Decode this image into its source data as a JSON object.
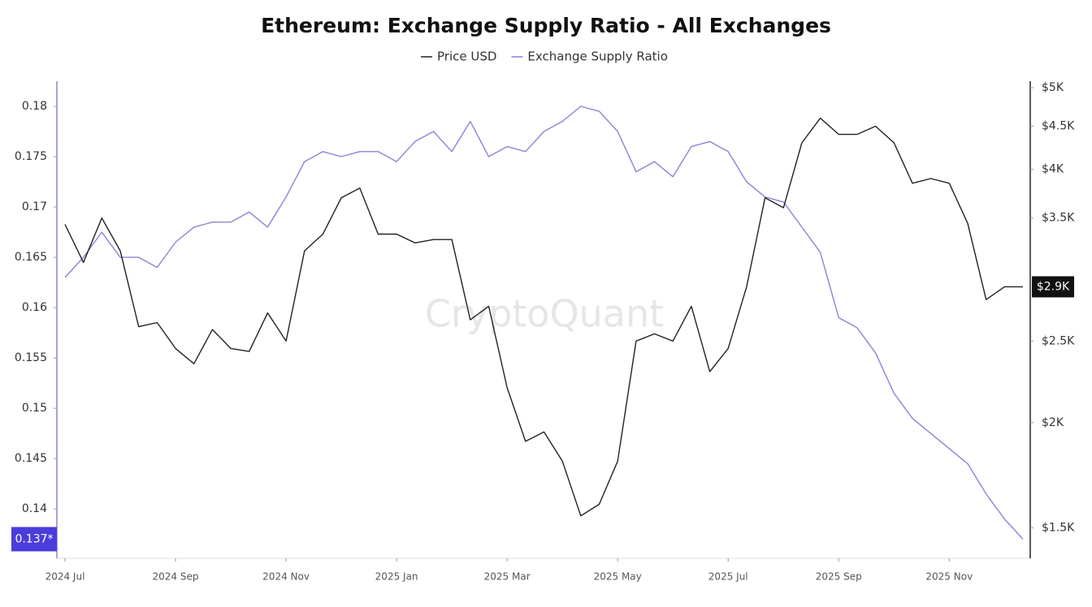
{
  "chart_data": {
    "type": "line",
    "title": "Ethereum: Exchange Supply Ratio - All Exchanges",
    "watermark": "CryptoQuant",
    "categories": [
      "2024 Jul",
      null,
      null,
      null,
      null,
      null,
      "2024 Sep",
      null,
      null,
      null,
      null,
      null,
      "2024 Nov",
      null,
      null,
      null,
      null,
      null,
      "2025 Jan",
      null,
      null,
      null,
      null,
      null,
      "2025 Mar",
      null,
      null,
      null,
      null,
      null,
      "2025 May",
      null,
      null,
      null,
      null,
      null,
      "2025 Jul",
      null,
      null,
      null,
      null,
      null,
      "2025 Sep",
      null,
      null,
      null,
      null,
      null,
      "2025 Nov",
      null,
      null,
      null,
      null
    ],
    "series": [
      {
        "name": "Price USD",
        "color": "#222222",
        "axis": "y2",
        "current_label": "$2.9K",
        "values": [
          3440,
          3100,
          3500,
          3200,
          2600,
          2630,
          2450,
          2350,
          2580,
          2450,
          2430,
          2700,
          2500,
          3200,
          3350,
          3700,
          3800,
          3350,
          3350,
          3270,
          3300,
          3300,
          2650,
          2750,
          2200,
          1900,
          1950,
          1800,
          1550,
          1600,
          1800,
          2500,
          2550,
          2500,
          2750,
          2300,
          2450,
          2900,
          3700,
          3600,
          4300,
          4600,
          4400,
          4400,
          4500,
          4300,
          3850,
          3900,
          3850,
          3450,
          2800,
          2900,
          2900
        ]
      },
      {
        "name": "Exchange Supply Ratio",
        "color": "#8a84d6",
        "current_label": "0.137*",
        "values": [
          0.163,
          0.165,
          0.1675,
          0.165,
          0.165,
          0.164,
          0.1665,
          0.168,
          0.1685,
          0.1685,
          0.1695,
          0.168,
          0.171,
          0.1745,
          0.1755,
          0.175,
          0.1755,
          0.1755,
          0.1745,
          0.1765,
          0.1775,
          0.1755,
          0.1785,
          0.175,
          0.176,
          0.1755,
          0.1775,
          0.1785,
          0.18,
          0.1795,
          0.1775,
          0.1735,
          0.1745,
          0.173,
          0.176,
          0.1765,
          0.1755,
          0.1725,
          0.171,
          0.1705,
          0.168,
          0.1655,
          0.159,
          0.158,
          0.1555,
          0.1515,
          0.149,
          0.1475,
          0.146,
          0.1445,
          0.1415,
          0.139,
          0.137
        ]
      }
    ],
    "ylim": [
      0.1351,
      0.1825
    ],
    "yticks": [
      0.14,
      0.145,
      0.15,
      0.155,
      0.16,
      0.165,
      0.17,
      0.175,
      0.18
    ],
    "y2lim": [
      1380,
      5090
    ],
    "y2_log": true,
    "y2ticks": [
      {
        "value": 1500,
        "label": "$1.5K"
      },
      {
        "value": 2000,
        "label": "$2K"
      },
      {
        "value": 2500,
        "label": "$2.5K"
      },
      {
        "value": 3500,
        "label": "$3.5K"
      },
      {
        "value": 4000,
        "label": "$4K"
      },
      {
        "value": 4500,
        "label": "$4.5K"
      },
      {
        "value": 5000,
        "label": "$5K"
      }
    ],
    "legend": "top"
  }
}
